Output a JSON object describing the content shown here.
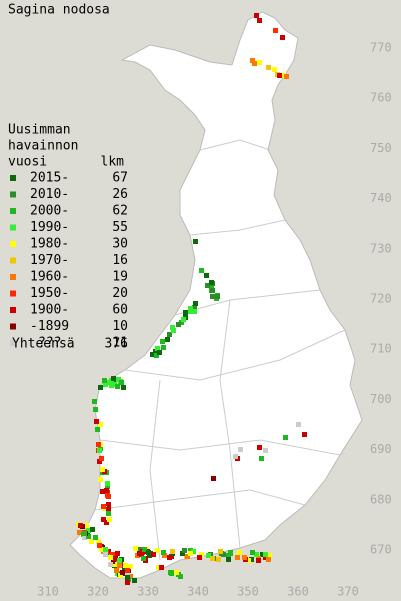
{
  "title": "Sagina nodosa",
  "legend": {
    "heading": [
      "Uusimman",
      "havainnon",
      "vuosi"
    ],
    "count_heading": "lkm",
    "items": [
      {
        "label": "2015-",
        "count": 67,
        "color": "#0b6b0b"
      },
      {
        "label": "2010-",
        "count": 26,
        "color": "#2a8f2a"
      },
      {
        "label": "2000-",
        "count": 62,
        "color": "#1fb81f"
      },
      {
        "label": "1990-",
        "count": 55,
        "color": "#33ee33"
      },
      {
        "label": "1980-",
        "count": 30,
        "color": "#ffff00"
      },
      {
        "label": "1970-",
        "count": 16,
        "color": "#f5c400"
      },
      {
        "label": "1960-",
        "count": 19,
        "color": "#ff7700"
      },
      {
        "label": "1950-",
        "count": 20,
        "color": "#ff2a00"
      },
      {
        "label": "1900-",
        "count": 60,
        "color": "#cc0000"
      },
      {
        "label": "-1899",
        "count": 10,
        "color": "#880000"
      },
      {
        "label": "???",
        "count": 11,
        "color": "#cccccc"
      }
    ],
    "total_label": "Yhteensä",
    "total": 376
  },
  "axes": {
    "y_ticks": [
      770,
      760,
      750,
      740,
      730,
      720,
      710,
      700,
      690,
      680,
      670
    ],
    "x_ticks": [
      310,
      320,
      330,
      340,
      350,
      360,
      370
    ]
  }
}
